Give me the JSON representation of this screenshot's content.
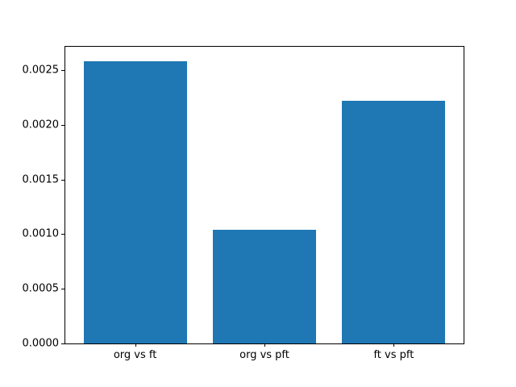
{
  "chart_data": {
    "type": "bar",
    "title": "",
    "xlabel": "",
    "ylabel": "",
    "categories": [
      "org vs ft",
      "org vs pft",
      "ft vs pft"
    ],
    "values": [
      0.00258,
      0.00104,
      0.00222
    ],
    "bar_color": "#1f77b4",
    "bar_width": 0.8,
    "xlim": [
      -0.54,
      2.54
    ],
    "ylim": [
      0,
      0.002712
    ],
    "yticks": [
      0.0,
      0.0005,
      0.001,
      0.0015,
      0.002,
      0.0025
    ],
    "ytick_labels": [
      "0.0000",
      "0.0005",
      "0.0010",
      "0.0015",
      "0.0020",
      "0.0025"
    ],
    "grid": false,
    "legend": null,
    "background_color": "#ffffff",
    "spine_color": "#000000"
  }
}
